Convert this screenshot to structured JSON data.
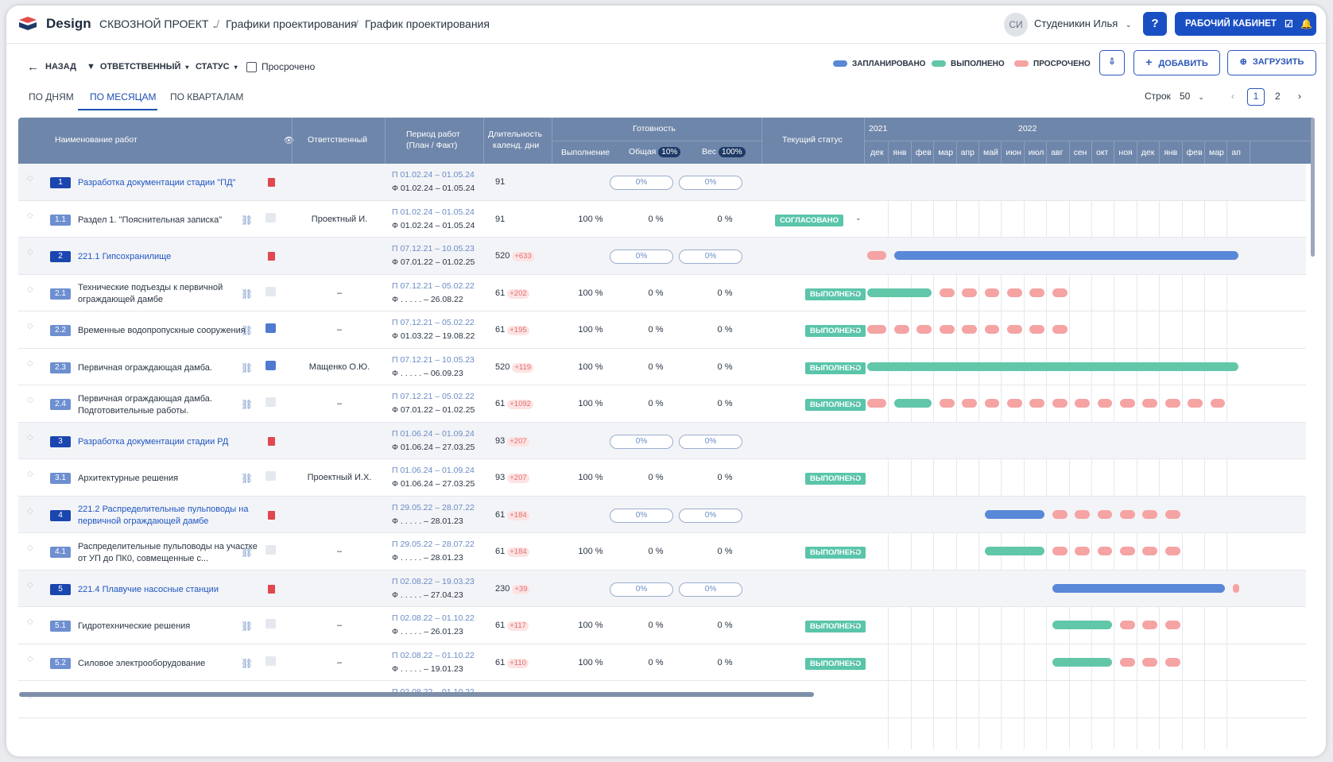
{
  "app": {
    "brand": "Design",
    "project": "СКВОЗНОЙ ПРОЕКТ",
    "crumb1": "Графики проектирования",
    "crumb2": "График проектирования",
    "sep": "/"
  },
  "user": {
    "initials": "СИ",
    "name": "Студеникин Илья",
    "help": "?",
    "cabinet": "РАБОЧИЙ КАБИНЕТ"
  },
  "toolbar": {
    "back": "НАЗАД",
    "responsible": "ОТВЕТСТВЕННЫЙ",
    "status": "СТАТУС",
    "overdue": "Просрочено",
    "add": "ДОБАВИТЬ",
    "upload": "ЗАГРУЗИТЬ"
  },
  "legend": {
    "planned": "ЗАПЛАНИРОВАНО",
    "done": "ВЫПОЛНЕНО",
    "overdue": "ПРОСРОЧЕНО",
    "colors": {
      "planned": "#5a88d8",
      "done": "#62c7a9",
      "overdue": "#f5a3a3"
    }
  },
  "tabs": [
    "ПО ДНЯМ",
    "ПО МЕСЯЦАМ",
    "ПО КВАРТАЛАМ"
  ],
  "active_tab": "ПО МЕСЯЦАМ",
  "pager": {
    "rows_label": "Строк",
    "rows_value": "50",
    "prev": "‹",
    "page1": "1",
    "page2": "2",
    "next": "›"
  },
  "header": {
    "name": "Наименование работ",
    "responsible": "Ответственный",
    "period1": "Период работ",
    "period2": "(План / Факт)",
    "dur1": "Длительность",
    "dur2": "календ. дни",
    "ready": "Готовность",
    "exec": "Выполнение",
    "total": "Общая",
    "total_pct": "10%",
    "weight": "Вес",
    "weight_pct": "100%",
    "status": "Текущий статус",
    "year1": "2021",
    "year2": "2022",
    "months": [
      "дек",
      "янв",
      "фев",
      "мар",
      "апр",
      "май",
      "июн",
      "июл",
      "авг",
      "сен",
      "окт",
      "ноя",
      "дек",
      "янв",
      "фев",
      "мар",
      "ап"
    ]
  },
  "rows": [
    {
      "num": "1",
      "name": "Разработка документации стадии \"ПД\"",
      "parent": true,
      "resp": "",
      "plan": "01.02.24 – 01.05.24",
      "fact": "01.02.24 – 01.05.24",
      "dur": "91",
      "extra": "",
      "exec": "",
      "total": "0%",
      "weight": "0%",
      "status": ""
    },
    {
      "num": "1.1",
      "name": "Раздел 1. \"Пояснительная записка\"",
      "parent": false,
      "resp": "Проектный И.",
      "plan": "01.02.24 – 01.05.24",
      "fact": "01.02.24 – 01.05.24",
      "dur": "91",
      "extra": "",
      "exec": "100 %",
      "total": "0 %",
      "weight": "0 %",
      "status": "СОГЛАСОВАНО"
    },
    {
      "num": "2",
      "name": "221.1 Гипсохранилище",
      "parent": true,
      "resp": "",
      "plan": "07.12.21 – 10.05.23",
      "fact": "07.01.22 – 01.02.25",
      "dur": "520",
      "extra": "+633",
      "exec": "",
      "total": "0%",
      "weight": "0%",
      "status": ""
    },
    {
      "num": "2.1",
      "name": "Технические подъезды к первичной ограждающей дамбе",
      "parent": false,
      "resp": "–",
      "plan": "07.12.21 – 05.02.22",
      "fact": ". . . . . – 26.08.22",
      "dur": "61",
      "extra": "+202",
      "exec": "100 %",
      "total": "0 %",
      "weight": "0 %",
      "status": "ВЫПОЛНЕНО"
    },
    {
      "num": "2.2",
      "name": "Временные водопропускные сооружения",
      "parent": false,
      "resp": "–",
      "plan": "07.12.21 – 05.02.22",
      "fact": "01.03.22 – 19.08.22",
      "dur": "61",
      "extra": "+195",
      "exec": "100 %",
      "total": "0 %",
      "weight": "0 %",
      "status": "ВЫПОЛНЕНО"
    },
    {
      "num": "2.3",
      "name": "Первичная ограждающая дамба.",
      "parent": false,
      "resp": "Мащенко О.Ю.",
      "plan": "07.12.21 – 10.05.23",
      "fact": ". . . . . – 06.09.23",
      "dur": "520",
      "extra": "+119",
      "exec": "100 %",
      "total": "0 %",
      "weight": "0 %",
      "status": "ВЫПОЛНЕНО"
    },
    {
      "num": "2.4",
      "name": "Первичная ограждающая дамба. Подготовительные работы.",
      "parent": false,
      "resp": "–",
      "plan": "07.12.21 – 05.02.22",
      "fact": "07.01.22 – 01.02.25",
      "dur": "61",
      "extra": "+1092",
      "exec": "100 %",
      "total": "0 %",
      "weight": "0 %",
      "status": "ВЫПОЛНЕНО"
    },
    {
      "num": "3",
      "name": "Разработка документации стадии РД",
      "parent": true,
      "resp": "",
      "plan": "01.06.24 – 01.09.24",
      "fact": "01.06.24 – 27.03.25",
      "dur": "93",
      "extra": "+207",
      "exec": "",
      "total": "0%",
      "weight": "0%",
      "status": ""
    },
    {
      "num": "3.1",
      "name": "Архитектурные решения",
      "parent": false,
      "resp": "Проектный И.Х.",
      "plan": "01.06.24 – 01.09.24",
      "fact": "01.06.24 – 27.03.25",
      "dur": "93",
      "extra": "+207",
      "exec": "100 %",
      "total": "0 %",
      "weight": "0 %",
      "status": "ВЫПОЛНЕНО"
    },
    {
      "num": "4",
      "name": "221.2 Распределительные пульповоды на первичной ограждающей дамбе",
      "parent": true,
      "resp": "",
      "plan": "29.05.22 – 28.07.22",
      "fact": ". . . . . – 28.01.23",
      "dur": "61",
      "extra": "+184",
      "exec": "",
      "total": "0%",
      "weight": "0%",
      "status": ""
    },
    {
      "num": "4.1",
      "name": "Распределительные пульповоды на участке от УП до ПК0, совмещенные с...",
      "parent": false,
      "resp": "–",
      "plan": "29.05.22 – 28.07.22",
      "fact": ". . . . . – 28.01.23",
      "dur": "61",
      "extra": "+184",
      "exec": "100 %",
      "total": "0 %",
      "weight": "0 %",
      "status": "ВЫПОЛНЕНО"
    },
    {
      "num": "5",
      "name": "221.4 Плавучие насосные станции",
      "parent": true,
      "resp": "",
      "plan": "02.08.22 – 19.03.23",
      "fact": ". . . . . – 27.04.23",
      "dur": "230",
      "extra": "+39",
      "exec": "",
      "total": "0%",
      "weight": "0%",
      "status": ""
    },
    {
      "num": "5.1",
      "name": "Гидротехнические решения",
      "parent": false,
      "resp": "–",
      "plan": "02.08.22 – 01.10.22",
      "fact": ". . . . . – 26.01.23",
      "dur": "61",
      "extra": "+117",
      "exec": "100 %",
      "total": "0 %",
      "weight": "0 %",
      "status": "ВЫПОЛНЕНО"
    },
    {
      "num": "5.2",
      "name": "Силовое электрооборудование",
      "parent": false,
      "resp": "–",
      "plan": "02.08.22 – 01.10.22",
      "fact": ". . . . . – 19.01.23",
      "dur": "61",
      "extra": "+110",
      "exec": "100 %",
      "total": "0 %",
      "weight": "0 %",
      "status": "ВЫПОЛНЕНО"
    },
    {
      "num": "",
      "name": "",
      "parent": false,
      "resp": "",
      "plan": "02.08.22 – 01.10.22",
      "fact": "",
      "dur": "",
      "extra": "",
      "exec": "",
      "total": "",
      "weight": "",
      "status": ""
    }
  ],
  "gantt": [
    [],
    [],
    [
      [
        "o",
        0,
        1
      ],
      [
        "p",
        1.2,
        16.6
      ]
    ],
    [
      [
        "d",
        0,
        3
      ],
      [
        "o",
        3.2,
        4
      ],
      [
        "o",
        4.2,
        5
      ],
      [
        "o",
        5.2,
        6
      ],
      [
        "o",
        6.2,
        7
      ],
      [
        "o",
        7.2,
        8
      ],
      [
        "o",
        8.2,
        9
      ]
    ],
    [
      [
        "o",
        0,
        1
      ],
      [
        "o",
        1.2,
        2
      ],
      [
        "o",
        2.2,
        3
      ],
      [
        "o",
        3.2,
        4
      ],
      [
        "o",
        4.2,
        5
      ],
      [
        "o",
        5.2,
        6
      ],
      [
        "o",
        6.2,
        7
      ],
      [
        "o",
        7.2,
        8
      ],
      [
        "o",
        8.2,
        9
      ]
    ],
    [
      [
        "d",
        0,
        16.6
      ]
    ],
    [
      [
        "o",
        0,
        1
      ],
      [
        "d",
        1.2,
        3
      ],
      [
        "o",
        3.2,
        4
      ],
      [
        "o",
        4.2,
        5
      ],
      [
        "o",
        5.2,
        6
      ],
      [
        "o",
        6.2,
        7
      ],
      [
        "o",
        7.2,
        8
      ],
      [
        "o",
        8.2,
        9
      ],
      [
        "o",
        9.2,
        10
      ],
      [
        "o",
        10.2,
        11
      ],
      [
        "o",
        11.2,
        12
      ],
      [
        "o",
        12.2,
        13
      ],
      [
        "o",
        13.2,
        14
      ],
      [
        "o",
        14.2,
        15
      ],
      [
        "o",
        15.2,
        16
      ]
    ],
    [],
    [],
    [
      [
        "p",
        5.2,
        8
      ],
      [
        "o",
        8.2,
        9
      ],
      [
        "o",
        9.2,
        10
      ],
      [
        "o",
        10.2,
        11
      ],
      [
        "o",
        11.2,
        12
      ],
      [
        "o",
        12.2,
        13
      ],
      [
        "o",
        13.2,
        14
      ]
    ],
    [
      [
        "d",
        5.2,
        8
      ],
      [
        "o",
        8.2,
        9
      ],
      [
        "o",
        9.2,
        10
      ],
      [
        "o",
        10.2,
        11
      ],
      [
        "o",
        11.2,
        12
      ],
      [
        "o",
        12.2,
        13
      ],
      [
        "o",
        13.2,
        14
      ]
    ],
    [
      [
        "p",
        8.2,
        16
      ],
      [
        "o",
        16.2,
        16.6
      ]
    ],
    [
      [
        "d",
        8.2,
        11
      ],
      [
        "o",
        11.2,
        12
      ],
      [
        "o",
        12.2,
        13
      ],
      [
        "o",
        13.2,
        14
      ]
    ],
    [
      [
        "d",
        8.2,
        11
      ],
      [
        "o",
        11.2,
        12
      ],
      [
        "o",
        12.2,
        13
      ],
      [
        "o",
        13.2,
        14
      ]
    ],
    []
  ]
}
